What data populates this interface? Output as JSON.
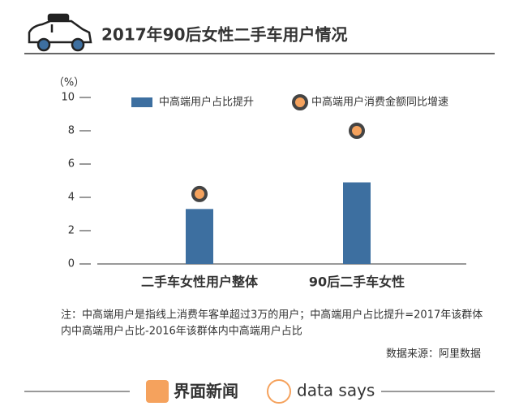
{
  "chart_data": {
    "type": "bar",
    "title": "2017年90后女性二手车用户情况",
    "unit_label": "（%）",
    "categories": [
      "二手车女性用户整体",
      "90后二手车女性"
    ],
    "series": [
      {
        "name": "中高端用户占比提升",
        "color": "#3d6fa0",
        "values": [
          3.3,
          4.9
        ]
      },
      {
        "name": "中高端用户消费金额同比增速",
        "color": "#f5a25d",
        "marker": "circle",
        "values": [
          4.2,
          8.0
        ]
      }
    ],
    "ylim": [
      0,
      10
    ],
    "yticks": [
      0,
      2,
      4,
      6,
      8,
      10
    ],
    "note": [
      "注：中高端用户是指线上消费年客单超过3万的用户；中高端用户占比提升=2017年该群体",
      "内中高端用户占比-2016年该群体内中高端用户占比"
    ],
    "source": "数据来源：阿里数据",
    "footer": [
      "界面新闻",
      "data says"
    ]
  }
}
